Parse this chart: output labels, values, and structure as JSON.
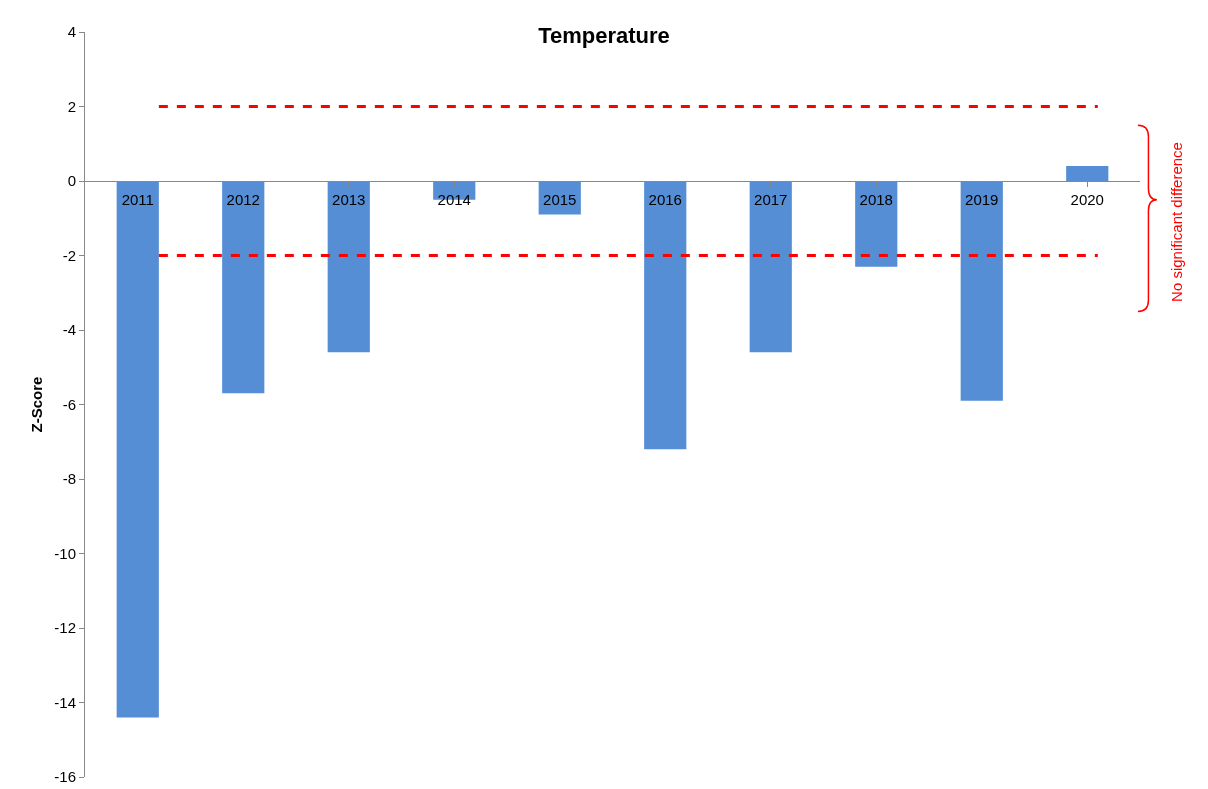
{
  "chart_data": {
    "type": "bar",
    "title": "Temperature",
    "ylabel": "Z-Score",
    "categories": [
      "2011",
      "2012",
      "2013",
      "2014",
      "2015",
      "2016",
      "2017",
      "2018",
      "2019",
      "2020"
    ],
    "values": [
      -14.4,
      -5.7,
      -4.6,
      -0.5,
      -0.9,
      -7.2,
      -4.6,
      -2.3,
      -5.9,
      0.4
    ],
    "color": "#558ed5",
    "ylim": [
      -16,
      4
    ],
    "yticks": [
      -16,
      -14,
      -12,
      -10,
      -8,
      -6,
      -4,
      -2,
      0,
      2,
      4
    ],
    "grid": false,
    "legend": false,
    "ref_lines": [
      {
        "axis": "y",
        "value": 2,
        "color": "#ff0000",
        "line_style": "dashed"
      },
      {
        "axis": "y",
        "value": -2,
        "color": "#ff0000",
        "line_style": "dashed"
      }
    ],
    "annotations": [
      "No significant difference"
    ]
  }
}
